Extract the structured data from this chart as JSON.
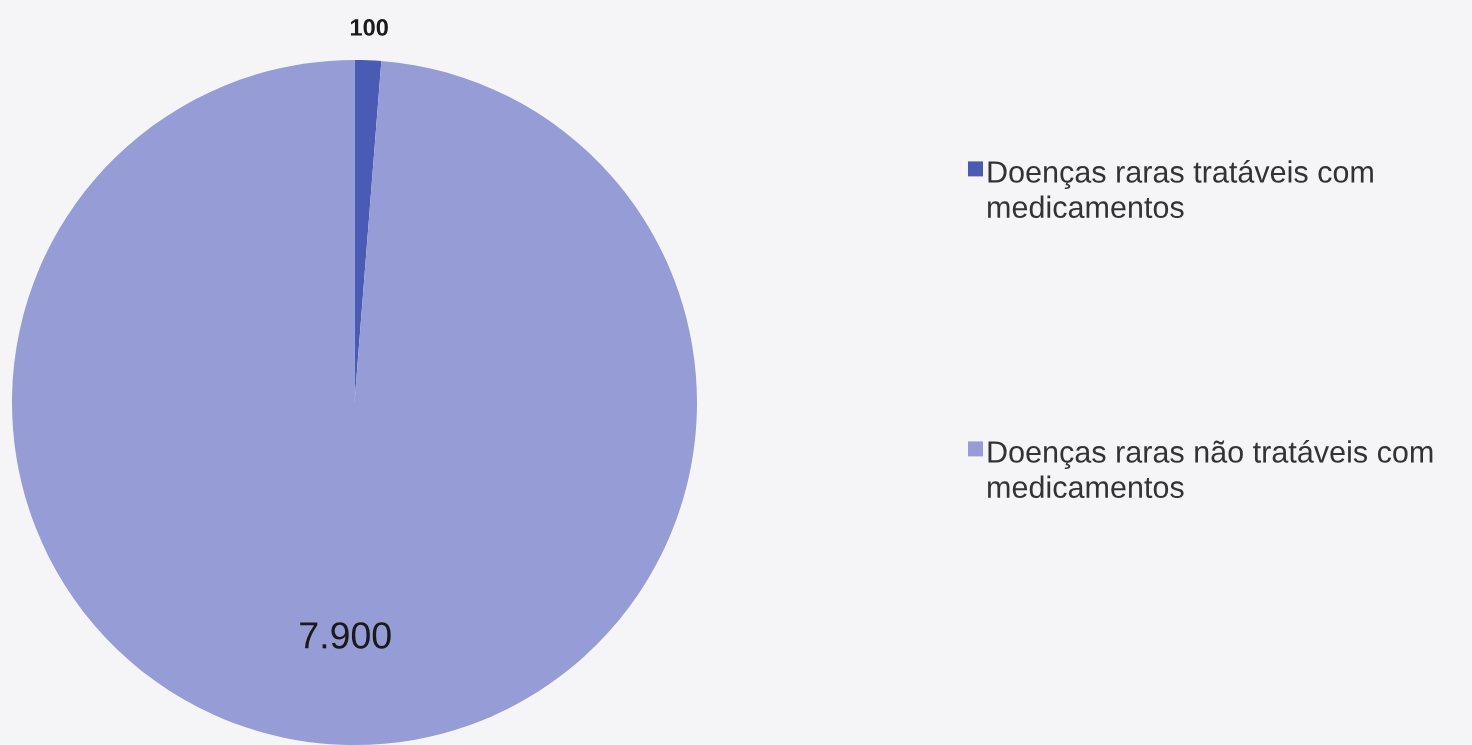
{
  "chart_data": {
    "type": "pie",
    "categories": [
      "Doenças raras tratáveis com medicamentos",
      "Doenças raras não tratáveis com medicamentos"
    ],
    "values": [
      100,
      7900
    ],
    "colors": [
      "#4a5bb5",
      "#969cd6"
    ],
    "value_labels": [
      "100",
      "7.900"
    ],
    "legend": "right"
  }
}
